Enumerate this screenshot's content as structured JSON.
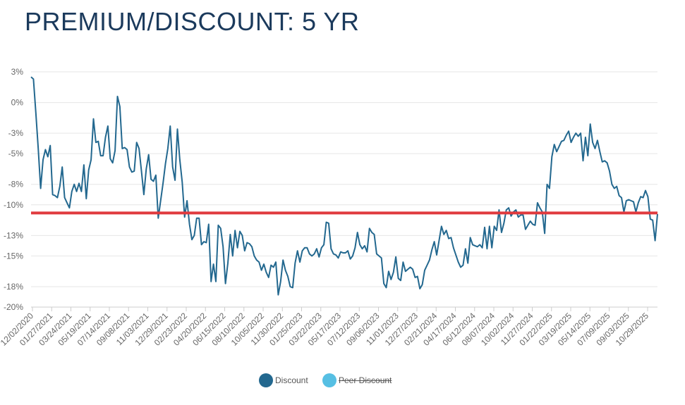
{
  "title": "PREMIUM/DISCOUNT: 5 YR",
  "colors": {
    "series": "#23688f",
    "peer": "#56bfe3",
    "average_line": "#e03a3e",
    "grid": "#e6e6e6",
    "title": "#1b3a5c"
  },
  "chart_data": {
    "type": "line",
    "title": "PREMIUM/DISCOUNT: 5 YR",
    "ylim": [
      -20,
      3
    ],
    "yticks": [
      3,
      0,
      -3,
      -5,
      -8,
      -10,
      -13,
      -15,
      -18,
      -20
    ],
    "ytick_labels": [
      "3%",
      "0%",
      "-3%",
      "-5%",
      "-8%",
      "-10%",
      "-13%",
      "-15%",
      "-18%",
      "-20%"
    ],
    "x_ticks": [
      "12/02/2020",
      "01/27/2021",
      "03/24/2021",
      "05/19/2021",
      "07/14/2021",
      "09/08/2021",
      "11/03/2021",
      "12/29/2021",
      "02/23/2022",
      "04/20/2022",
      "06/15/2022",
      "08/10/2022",
      "10/05/2022",
      "11/30/2022",
      "01/25/2023",
      "03/22/2023",
      "05/17/2023",
      "07/12/2023",
      "09/06/2023",
      "11/01/2023",
      "12/27/2023",
      "02/21/2024",
      "04/17/2024",
      "06/12/2024",
      "08/07/2024",
      "10/02/2024",
      "11/27/2024",
      "01/22/2025",
      "03/19/2025",
      "05/14/2025",
      "07/09/2025",
      "09/03/2025",
      "10/29/2025"
    ],
    "grid": true,
    "legend_position": "bottom",
    "reference_line": -10.8,
    "series": [
      {
        "name": "Discount",
        "values": [
          2.5,
          2.3,
          -1.0,
          -4.5,
          -8.4,
          -5.6,
          -4.6,
          -5.3,
          -4.2,
          -9.0,
          -9.1,
          -9.3,
          -8.2,
          -6.3,
          -9.3,
          -9.8,
          -10.3,
          -8.7,
          -8.0,
          -8.7,
          -7.9,
          -8.7,
          -6.1,
          -9.4,
          -6.6,
          -5.6,
          -1.6,
          -3.9,
          -3.8,
          -5.2,
          -5.2,
          -3.4,
          -2.3,
          -5.5,
          -5.9,
          -4.7,
          0.6,
          -0.4,
          -4.5,
          -4.4,
          -4.6,
          -6.3,
          -6.8,
          -6.7,
          -3.9,
          -4.5,
          -6.7,
          -9.0,
          -6.5,
          -5.1,
          -7.5,
          -7.7,
          -7.1,
          -11.3,
          -9.6,
          -7.9,
          -6.0,
          -4.5,
          -2.3,
          -6.3,
          -7.6,
          -2.6,
          -5.6,
          -7.8,
          -11.2,
          -9.6,
          -11.9,
          -13.4,
          -13.0,
          -11.3,
          -11.3,
          -13.9,
          -13.6,
          -13.7,
          -11.9,
          -17.5,
          -15.8,
          -17.5,
          -12.0,
          -12.3,
          -14.1,
          -17.7,
          -15.7,
          -12.9,
          -15.0,
          -12.5,
          -14.2,
          -12.6,
          -13.0,
          -14.5,
          -13.7,
          -13.8,
          -14.1,
          -15.0,
          -15.4,
          -15.6,
          -16.4,
          -15.8,
          -16.6,
          -17.1,
          -15.9,
          -16.1,
          -15.6,
          -18.8,
          -17.5,
          -15.4,
          -16.4,
          -17.0,
          -18.0,
          -18.1,
          -15.7,
          -14.5,
          -15.6,
          -14.5,
          -14.2,
          -14.2,
          -14.8,
          -15.0,
          -14.8,
          -14.3,
          -15.1,
          -14.2,
          -13.9,
          -11.7,
          -11.8,
          -14.3,
          -14.8,
          -14.9,
          -15.2,
          -14.6,
          -14.7,
          -14.7,
          -14.5,
          -15.3,
          -15.0,
          -14.2,
          -12.7,
          -13.9,
          -14.3,
          -14.0,
          -14.6,
          -12.3,
          -12.7,
          -12.9,
          -14.8,
          -15.0,
          -15.2,
          -17.7,
          -18.1,
          -16.5,
          -17.3,
          -16.6,
          -15.1,
          -17.2,
          -17.4,
          -15.6,
          -16.5,
          -16.3,
          -16.1,
          -16.3,
          -17.1,
          -17.0,
          -18.2,
          -17.8,
          -16.4,
          -15.9,
          -15.4,
          -14.4,
          -13.6,
          -14.9,
          -13.5,
          -12.1,
          -12.9,
          -12.5,
          -13.3,
          -13.2,
          -14.2,
          -14.9,
          -15.6,
          -16.1,
          -15.9,
          -14.3,
          -15.7,
          -13.2,
          -13.9,
          -14.0,
          -14.1,
          -13.9,
          -14.2,
          -12.2,
          -14.3,
          -12.1,
          -14.2,
          -12.1,
          -12.5,
          -10.5,
          -12.7,
          -11.8,
          -10.5,
          -10.3,
          -11.1,
          -10.7,
          -10.5,
          -11.2,
          -11.0,
          -11.0,
          -12.4,
          -12.0,
          -11.6,
          -11.9,
          -12.0,
          -9.8,
          -10.3,
          -10.7,
          -12.8,
          -8.0,
          -8.4,
          -5.3,
          -4.1,
          -4.8,
          -4.3,
          -3.8,
          -3.7,
          -3.2,
          -2.8,
          -3.9,
          -3.4,
          -3.0,
          -3.3,
          -3.0,
          -5.7,
          -3.4,
          -5.2,
          -2.1,
          -3.9,
          -4.5,
          -3.7,
          -4.8,
          -5.8,
          -5.7,
          -5.9,
          -6.7,
          -8.0,
          -8.4,
          -8.2,
          -9.1,
          -9.3,
          -10.7,
          -9.6,
          -9.5,
          -9.6,
          -9.7,
          -10.7,
          -9.8,
          -9.2,
          -9.3,
          -8.6,
          -9.2,
          -11.4,
          -11.5,
          -13.5,
          -10.9
        ]
      },
      {
        "name": "Peer Discount",
        "values": []
      }
    ]
  },
  "legend": {
    "discount_label": "Discount",
    "peer_label": "Peer Discount"
  }
}
